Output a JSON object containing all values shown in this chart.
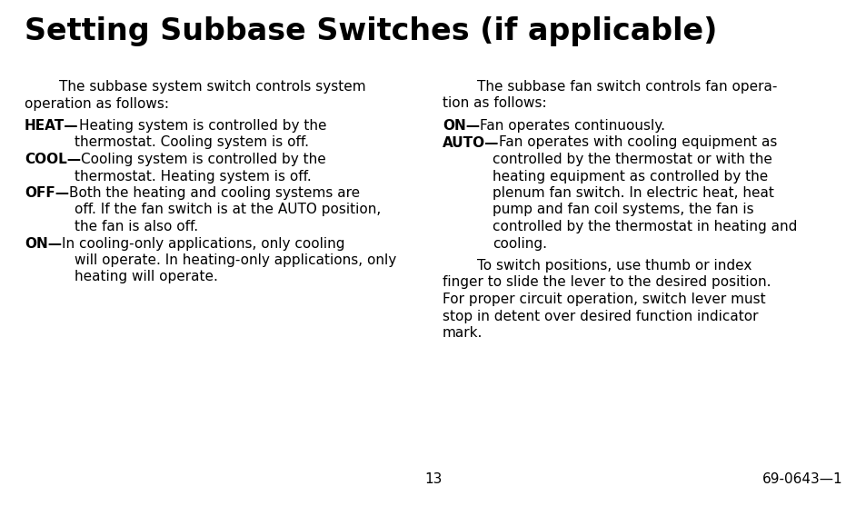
{
  "title": "Setting Subbase Switches (if applicable)",
  "background_color": "#ffffff",
  "text_color": "#000000",
  "page_number": "13",
  "doc_number": "69-0643—1",
  "left_col_lines": [
    {
      "type": "indent",
      "text": "The subbase system switch controls system"
    },
    {
      "type": "plain",
      "text": "operation as follows:"
    },
    {
      "type": "gap"
    },
    {
      "type": "item",
      "bold": "HEAT—",
      "rest": "Heating system is controlled by the"
    },
    {
      "type": "indent2",
      "text": "thermostat. Cooling system is off."
    },
    {
      "type": "item",
      "bold": "COOL—",
      "rest": "Cooling system is controlled by the"
    },
    {
      "type": "indent2",
      "text": "thermostat. Heating system is off."
    },
    {
      "type": "item",
      "bold": "OFF—",
      "rest": "Both the heating and cooling systems are"
    },
    {
      "type": "indent2",
      "text": "off. If the fan switch is at the AUTO position,"
    },
    {
      "type": "indent2",
      "text": "the fan is also off."
    },
    {
      "type": "item",
      "bold": "ON—",
      "rest": "In cooling-only applications, only cooling"
    },
    {
      "type": "indent2",
      "text": "will operate. In heating-only applications, only"
    },
    {
      "type": "indent2",
      "text": "heating will operate."
    }
  ],
  "right_col_lines": [
    {
      "type": "indent",
      "text": "The subbase fan switch controls fan opera-"
    },
    {
      "type": "plain",
      "text": "tion as follows:"
    },
    {
      "type": "gap"
    },
    {
      "type": "item",
      "bold": "ON—",
      "rest": "Fan operates continuously."
    },
    {
      "type": "item",
      "bold": "AUTO—",
      "rest": "Fan operates with cooling equipment as"
    },
    {
      "type": "indent2",
      "text": "controlled by the thermostat or with the"
    },
    {
      "type": "indent2",
      "text": "heating equipment as controlled by the"
    },
    {
      "type": "indent2",
      "text": "plenum fan switch. In electric heat, heat"
    },
    {
      "type": "indent2",
      "text": "pump and fan coil systems, the fan is"
    },
    {
      "type": "indent2",
      "text": "controlled by the thermostat in heating and"
    },
    {
      "type": "indent2",
      "text": "cooling."
    },
    {
      "type": "gap"
    },
    {
      "type": "indent",
      "text": "To switch positions, use thumb or index"
    },
    {
      "type": "plain",
      "text": "finger to slide the lever to the desired position."
    },
    {
      "type": "plain",
      "text": "For proper circuit operation, switch lever must"
    },
    {
      "type": "plain",
      "text": "stop in detent over desired function indicator"
    },
    {
      "type": "plain",
      "text": "mark."
    }
  ],
  "title_fontsize": 24,
  "body_fontsize": 11,
  "indent_chars": 4,
  "indent2_chars": 8
}
